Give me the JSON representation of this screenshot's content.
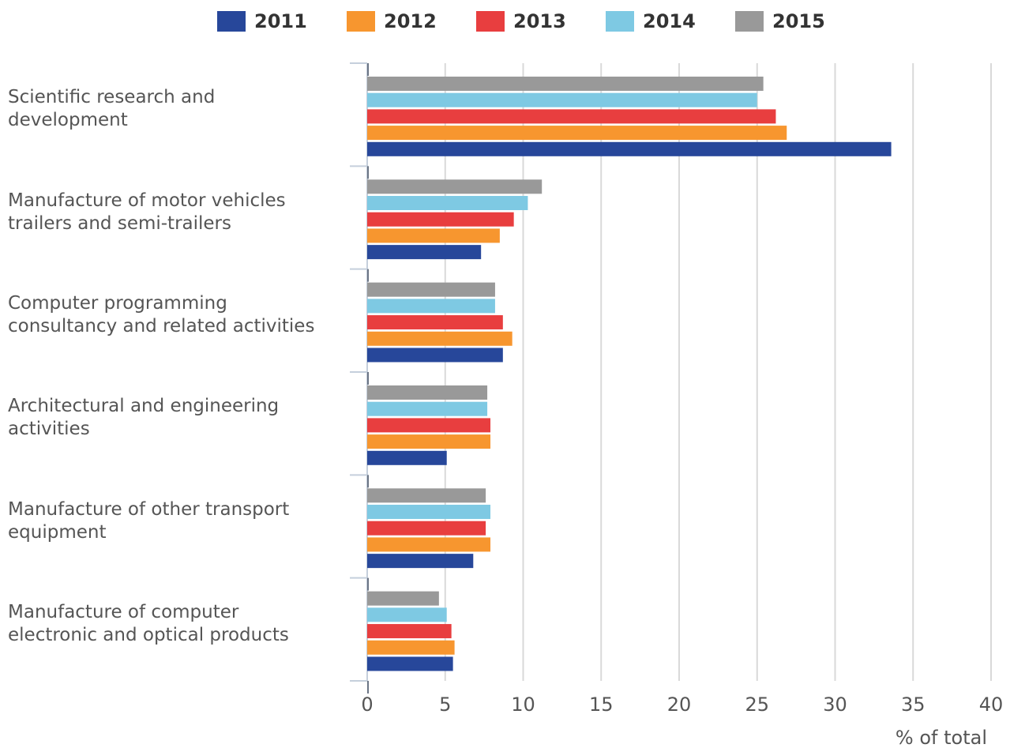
{
  "chart_data": {
    "type": "bar",
    "orientation": "horizontal",
    "categories": [
      "Scientific research and\ndevelopment",
      "Manufacture of motor vehicles\ntrailers and semi-trailers",
      "Computer programming\nconsultancy and related activities",
      "Architectural and engineering\nactivities",
      "Manufacture of other transport\nequipment",
      "Manufacture of computer\nelectronic and optical products"
    ],
    "series": [
      {
        "name": "2011",
        "color": "#27479a",
        "values": [
          33.6,
          7.3,
          8.7,
          5.1,
          6.8,
          5.5
        ]
      },
      {
        "name": "2012",
        "color": "#f7962f",
        "values": [
          26.9,
          8.5,
          9.3,
          7.9,
          7.9,
          5.6
        ]
      },
      {
        "name": "2013",
        "color": "#e83e3f",
        "values": [
          26.2,
          9.4,
          8.7,
          7.9,
          7.6,
          5.4
        ]
      },
      {
        "name": "2014",
        "color": "#7ec9e3",
        "values": [
          25.0,
          10.3,
          8.2,
          7.7,
          7.9,
          5.1
        ]
      },
      {
        "name": "2015",
        "color": "#999999",
        "values": [
          25.4,
          11.2,
          8.2,
          7.7,
          7.6,
          4.6
        ]
      }
    ],
    "xlabel": "% of total",
    "xlim": [
      0,
      40
    ],
    "xticks": [
      0,
      5,
      10,
      15,
      20,
      25,
      30,
      35,
      40
    ],
    "grid": true,
    "legend": "top"
  }
}
